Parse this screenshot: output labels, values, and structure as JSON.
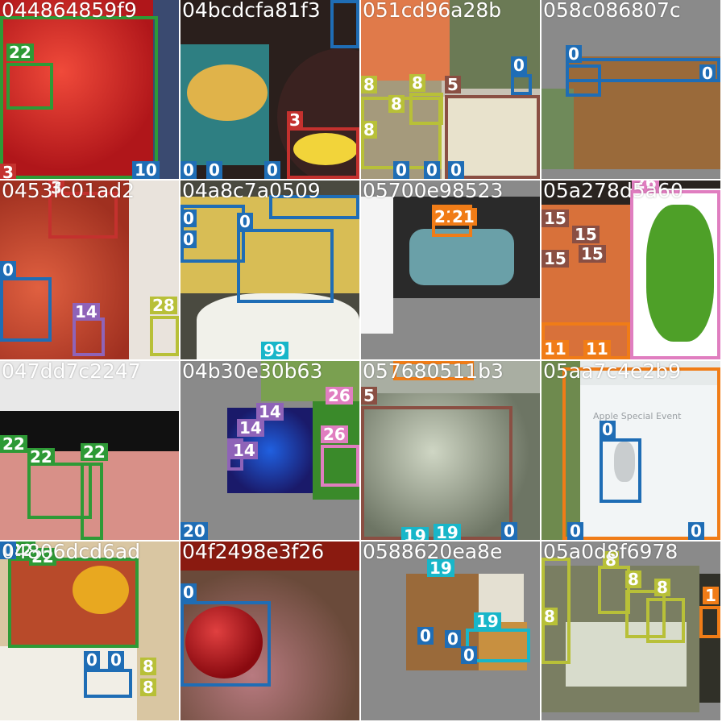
{
  "class_colors": {
    "0": "#1f6db5",
    "3": "#c4312e",
    "5": "#8a4f43",
    "8": "#b8c038",
    "10": "#1f6db5",
    "11": "#f07c17",
    "14": "#8f63b8",
    "15": "#8a4f43",
    "19": "#18b6c9",
    "20": "#1f6db5",
    "21": "#f07c17",
    "22": "#2e9a36",
    "26": "#e07ec0",
    "28": "#b8c038",
    "99": "#18b6c9"
  },
  "tiles": [
    {
      "title": "044864859f9",
      "labels": [
        "22",
        "10",
        "3"
      ]
    },
    {
      "title": "04bcdcfa81f3",
      "labels": [
        "0",
        "0",
        "0",
        "3"
      ]
    },
    {
      "title": "051cd96a28b",
      "labels": [
        "8",
        "8",
        "8",
        "8",
        "5",
        "0",
        "0",
        "0",
        "0"
      ]
    },
    {
      "title": "058c086807c",
      "labels": [
        "0",
        "0"
      ]
    },
    {
      "title": "0453fc01ad2",
      "labels": [
        "3",
        "0",
        "14",
        "28"
      ]
    },
    {
      "title": "04a8c7a0509",
      "labels": [
        "0",
        "0",
        "0",
        "99"
      ]
    },
    {
      "title": "05700e98523",
      "labels": [
        "21",
        "21"
      ]
    },
    {
      "title": "05a278d5a60",
      "labels": [
        "15",
        "15",
        "15",
        "15",
        "11",
        "11",
        "26"
      ]
    },
    {
      "title": "047dd7c2247",
      "labels": [
        "22",
        "22",
        "22"
      ]
    },
    {
      "title": "04b30e30b63",
      "labels": [
        "14",
        "14",
        "14",
        "26",
        "26",
        "20"
      ]
    },
    {
      "title": "057680511b3",
      "labels": [
        "5",
        "19",
        "19",
        "0"
      ]
    },
    {
      "title": "05aa7c4e2b9",
      "labels": [
        "0",
        "0",
        "0"
      ],
      "screen_text": "Apple Special Event"
    },
    {
      "title": "04806dcd6ad",
      "labels": [
        "0",
        "22",
        "22",
        "0",
        "0",
        "8",
        "8"
      ]
    },
    {
      "title": "04f2498e3f26",
      "labels": [
        "0"
      ]
    },
    {
      "title": "0588620ea8e",
      "labels": [
        "0",
        "0",
        "0",
        "19",
        "19"
      ]
    },
    {
      "title": "05a0d8f6978",
      "labels": [
        "8",
        "8",
        "8",
        "8",
        "1"
      ]
    }
  ]
}
